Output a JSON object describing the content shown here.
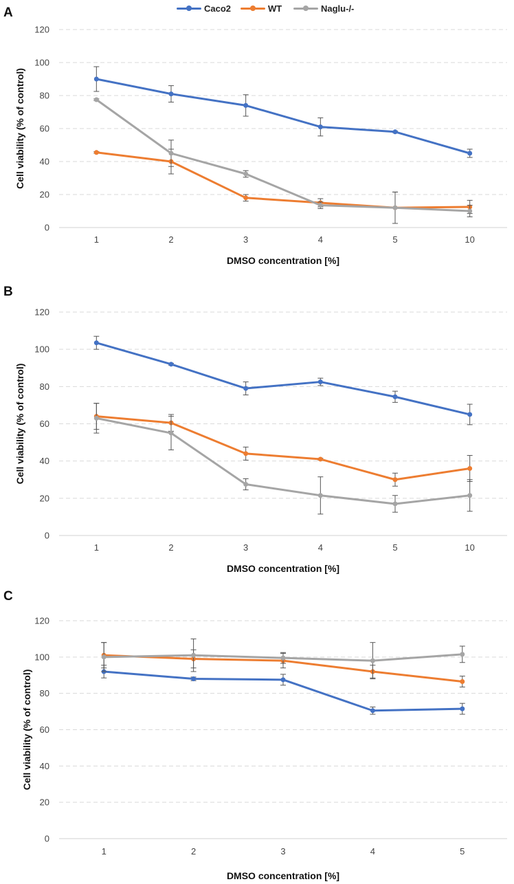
{
  "legend": {
    "entries": [
      {
        "name": "Caco2",
        "color": "#4472C4"
      },
      {
        "name": "WT",
        "color": "#ED7D31"
      },
      {
        "name": "Naglu-/-",
        "color": "#A5A5A5"
      }
    ]
  },
  "chart_data": [
    {
      "type": "line",
      "panel": "A",
      "xlabel": "DMSO concentration [%]",
      "ylabel": "Cell viability (% of control)",
      "categories": [
        "1",
        "2",
        "3",
        "4",
        "5",
        "10"
      ],
      "ylim": [
        0,
        120
      ],
      "yticks": [
        0,
        20,
        40,
        60,
        80,
        100,
        120
      ],
      "grid": true,
      "series": [
        {
          "name": "Caco2",
          "color": "#4472C4",
          "values": [
            90,
            81,
            74,
            61,
            58,
            45
          ],
          "errors": [
            7.5,
            5,
            6.5,
            5.5,
            0.5,
            2.5
          ]
        },
        {
          "name": "WT",
          "color": "#ED7D31",
          "values": [
            45.5,
            40,
            18,
            15,
            12,
            12.5
          ],
          "errors": [
            0.5,
            7.5,
            2,
            2.5,
            9.5,
            4
          ]
        },
        {
          "name": "Naglu-/-",
          "color": "#A5A5A5",
          "values": [
            77.5,
            45,
            32.5,
            13.5,
            12,
            10
          ],
          "errors": [
            0.5,
            8,
            2,
            2,
            9.5,
            3.5
          ]
        }
      ]
    },
    {
      "type": "line",
      "panel": "B",
      "xlabel": "DMSO concentration [%]",
      "ylabel": "Cell viability (% of control)",
      "categories": [
        "1",
        "2",
        "3",
        "4",
        "5",
        "10"
      ],
      "ylim": [
        0,
        120
      ],
      "yticks": [
        0,
        20,
        40,
        60,
        80,
        100,
        120
      ],
      "grid": true,
      "series": [
        {
          "name": "Caco2",
          "color": "#4472C4",
          "values": [
            103.5,
            92,
            79,
            82.5,
            74.5,
            65
          ],
          "errors": [
            3.5,
            0.5,
            3.5,
            2,
            3,
            5.5
          ]
        },
        {
          "name": "WT",
          "color": "#ED7D31",
          "values": [
            64,
            60.5,
            44,
            41,
            30,
            36
          ],
          "errors": [
            7,
            4.5,
            3.5,
            0.5,
            3.5,
            7
          ]
        },
        {
          "name": "Naglu-/-",
          "color": "#A5A5A5",
          "values": [
            63,
            55,
            27.5,
            21.5,
            17,
            21.5
          ],
          "errors": [
            8,
            9,
            3,
            10,
            4.5,
            8.5
          ]
        }
      ]
    },
    {
      "type": "line",
      "panel": "C",
      "xlabel": "DMSO concentration [%]",
      "ylabel": "Cell viability (% of control)",
      "categories": [
        "1",
        "2",
        "3",
        "4",
        "5"
      ],
      "ylim": [
        0,
        120
      ],
      "yticks": [
        0,
        20,
        40,
        60,
        80,
        100,
        120
      ],
      "grid": true,
      "series": [
        {
          "name": "Caco2",
          "color": "#4472C4",
          "values": [
            92,
            88,
            87.5,
            70.5,
            71.5
          ],
          "errors": [
            3.5,
            1,
            3,
            2,
            3
          ]
        },
        {
          "name": "WT",
          "color": "#ED7D31",
          "values": [
            101,
            99,
            98,
            92,
            86.5
          ],
          "errors": [
            7,
            5,
            4,
            3.5,
            3
          ]
        },
        {
          "name": "Naglu-/-",
          "color": "#A5A5A5",
          "values": [
            100,
            101,
            99.5,
            98,
            101.5
          ],
          "errors": [
            8,
            9,
            3,
            10,
            4.5
          ]
        }
      ]
    }
  ]
}
